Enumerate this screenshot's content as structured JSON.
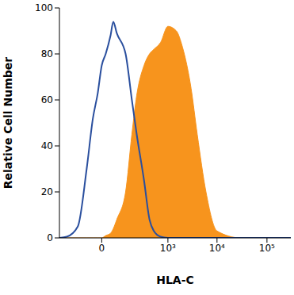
{
  "chart_data": {
    "type": "line",
    "x_label": "HLA-C",
    "y_label": "Relative Cell Number",
    "x": [
      -300,
      -200,
      -100,
      -50,
      -25,
      -10,
      0,
      10,
      25,
      35,
      50,
      100,
      150,
      200,
      300,
      400,
      500,
      700,
      1000,
      1500,
      2000,
      3000,
      4000,
      6000,
      10000,
      30000,
      100000,
      300000
    ],
    "series": [
      {
        "type": "line",
        "color": "#2a4f9e",
        "values": [
          0,
          0.5,
          5,
          30,
          52,
          63,
          75,
          80,
          88,
          94,
          89,
          80,
          60,
          45,
          25,
          8,
          3,
          0.5,
          0,
          0,
          0,
          0,
          0,
          0,
          0,
          0,
          0,
          0
        ]
      },
      {
        "type": "area",
        "color": "#f7941d",
        "values": [
          0,
          0,
          0,
          0,
          0,
          0,
          0,
          1,
          2,
          4,
          8,
          20,
          45,
          62,
          75,
          80,
          82,
          85,
          92,
          90,
          83,
          65,
          45,
          20,
          3,
          0,
          0,
          0
        ]
      }
    ],
    "xlim": [
      -300,
      300000
    ],
    "xticks": [
      0,
      {
        "value": 1000,
        "label": "10³"
      },
      {
        "value": 10000,
        "label": "10⁴"
      },
      {
        "value": 100000,
        "label": "10⁵"
      }
    ],
    "ylim": [
      0,
      100
    ],
    "yticks": [
      0,
      20,
      40,
      60,
      80,
      100
    ]
  }
}
